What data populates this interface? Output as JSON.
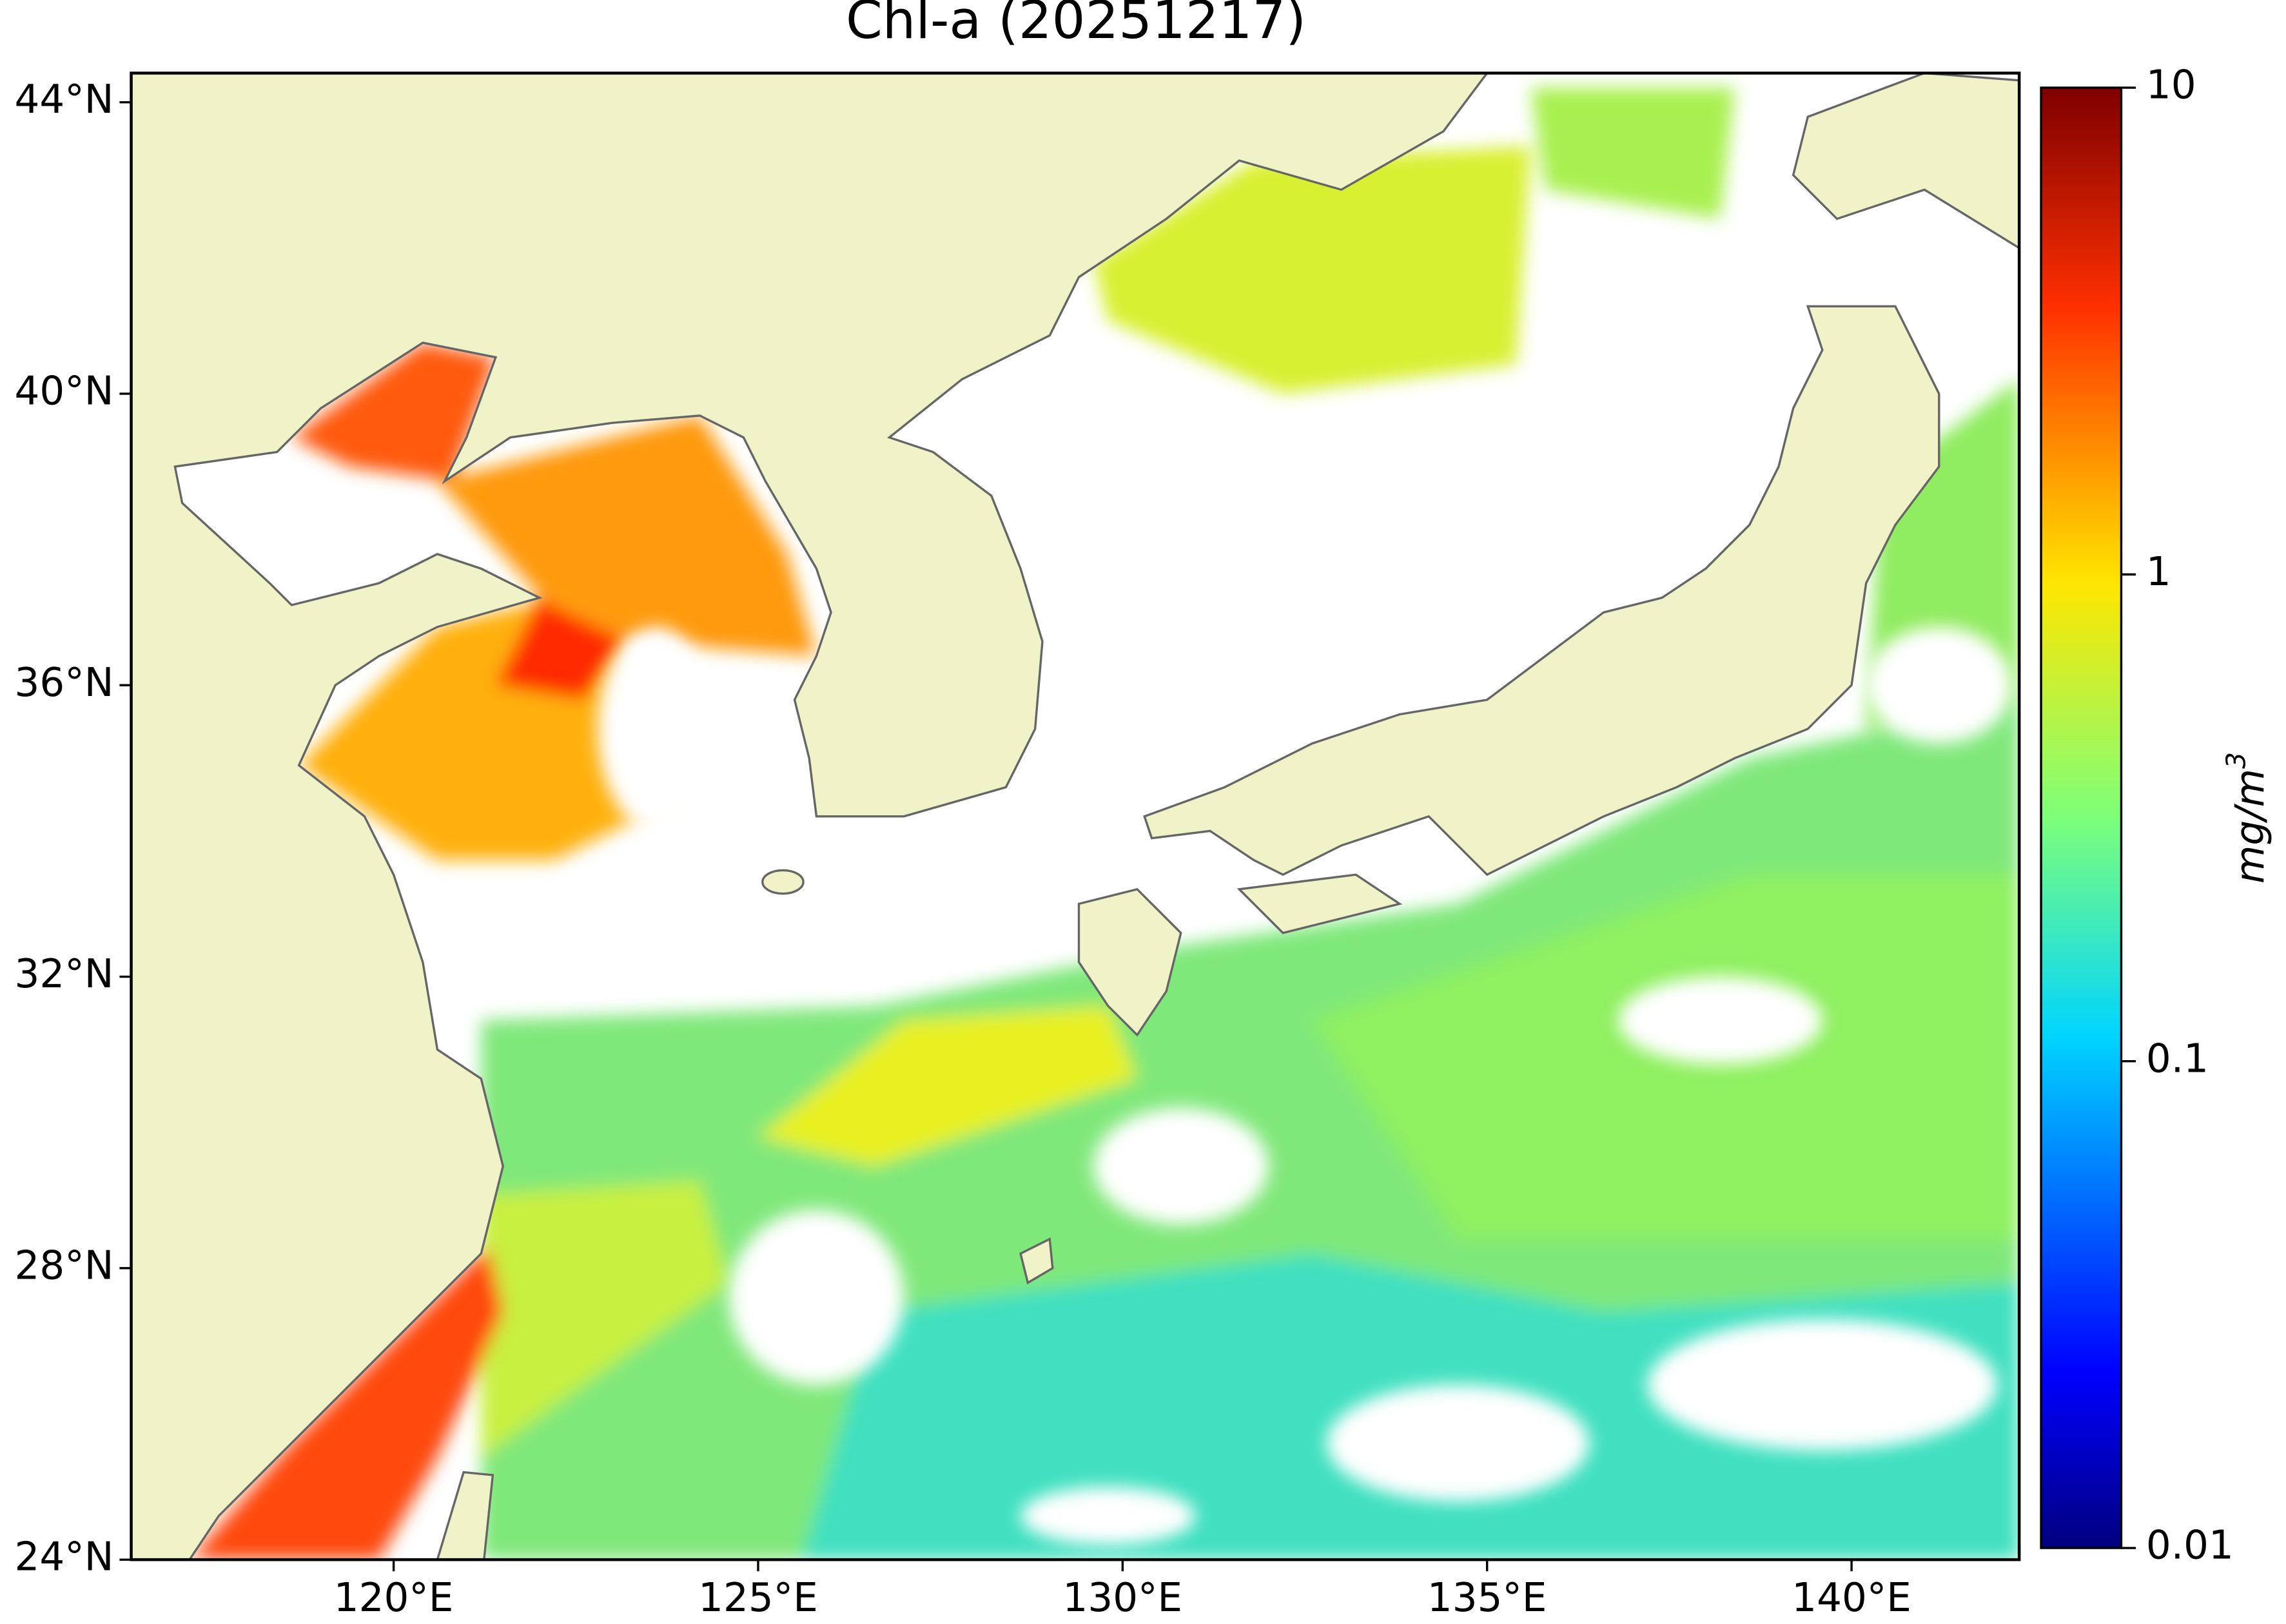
{
  "chart_data": {
    "type": "map",
    "title": "Chl-a (20251217)",
    "xlim": [
      116.4,
      142.3
    ],
    "ylim": [
      24,
      44.4
    ],
    "xticks": [
      {
        "value": 120,
        "label": "120°E"
      },
      {
        "value": 125,
        "label": "125°E"
      },
      {
        "value": 130,
        "label": "130°E"
      },
      {
        "value": 135,
        "label": "135°E"
      },
      {
        "value": 140,
        "label": "140°E"
      }
    ],
    "yticks": [
      {
        "value": 24,
        "label": "24°N"
      },
      {
        "value": 28,
        "label": "28°N"
      },
      {
        "value": 32,
        "label": "32°N"
      },
      {
        "value": 36,
        "label": "36°N"
      },
      {
        "value": 40,
        "label": "40°N"
      },
      {
        "value": 44,
        "label": "44°N"
      }
    ],
    "colorbar": {
      "lim": [
        0.01,
        10
      ],
      "log": true,
      "ticks": [
        0.01,
        0.1,
        1,
        10
      ],
      "label": "mg/m",
      "label_sup": "3"
    }
  }
}
